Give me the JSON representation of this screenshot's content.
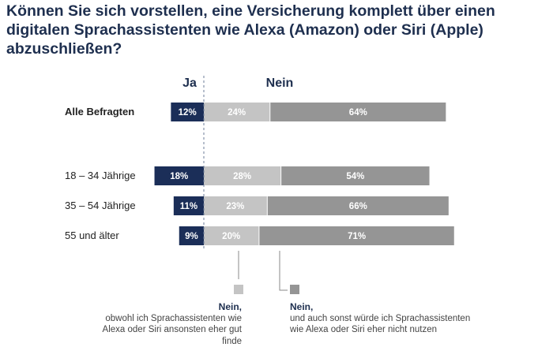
{
  "title": {
    "part1": "Können Sie sich vorstellen, eine ",
    "part2_bold": "Versicherung komplett über einen digitalen Sprachassistenten",
    "part3": " wie Alexa (Amazon) oder Siri (Apple) ",
    "part4_bold": "abzuschließen",
    "part5": "?"
  },
  "colors": {
    "ja": "#1b2e58",
    "nein_light": "#c4c4c4",
    "nein_dark": "#959595",
    "title": "#1e2f4f"
  },
  "legend": {
    "light_head": "Nein,",
    "light_line1": "obwohl ich Sprachassistenten wie",
    "light_line2": "Alexa oder Siri ansonsten eher gut finde",
    "dark_head": "Nein,",
    "dark_line1": "und auch sonst würde ich Sprachassistenten",
    "dark_line2": "wie Alexa oder Siri eher nicht nutzen"
  },
  "chart_data": {
    "type": "bar",
    "orientation": "horizontal-diverging",
    "groups": [
      "Ja",
      "Nein"
    ],
    "categories": [
      "Alle Befragten",
      "18 – 34 Jährige",
      "35 – 54 Jährige",
      "55 und älter"
    ],
    "series": [
      {
        "values": [
          12,
          18,
          11,
          9
        ]
      },
      {
        "values": [
          24,
          28,
          23,
          20
        ]
      },
      {
        "values": [
          64,
          54,
          66,
          71
        ]
      }
    ],
    "value_labels": {
      "ja": [
        "12%",
        "18%",
        "11%",
        "9%"
      ],
      "nein_light": [
        "24%",
        "28%",
        "23%",
        "20%"
      ],
      "nein_dark": [
        "64%",
        "54%",
        "66%",
        "71%"
      ]
    },
    "grid": false
  }
}
